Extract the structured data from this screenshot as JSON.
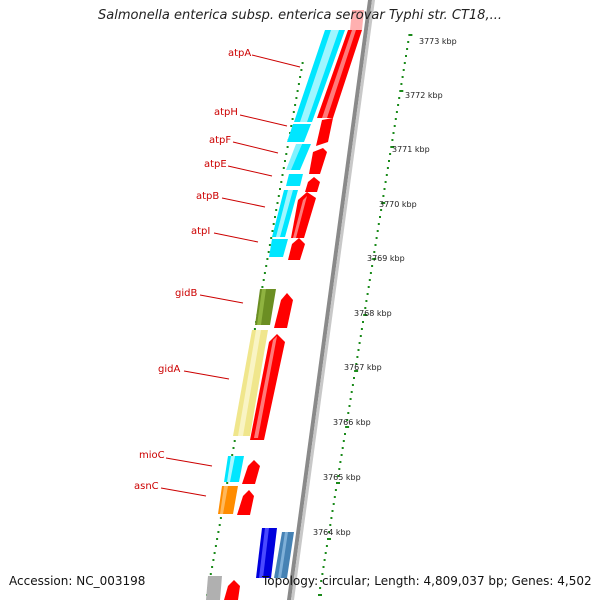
{
  "title": "Salmonella enterica subsp. enterica serovar Typhi str. CT18,...",
  "accession": "Accession: NC_003198",
  "summary": "Topology: circular; Length: 4,809,037 bp; Genes: 4,502",
  "colors": {
    "backbone": "#808080",
    "tick": "#1a8a1a",
    "forward_strand": "#ff0000",
    "label": "#cc0000"
  },
  "genes": [
    {
      "name": "atpA",
      "color": "#00e6ff"
    },
    {
      "name": "atpH",
      "color": "#00e6ff"
    },
    {
      "name": "atpF",
      "color": "#00e6ff"
    },
    {
      "name": "atpE",
      "color": "#00e6ff"
    },
    {
      "name": "atpB",
      "color": "#00e6ff"
    },
    {
      "name": "atpI",
      "color": "#00e6ff"
    },
    {
      "name": "gidB",
      "color": "#6b8e23"
    },
    {
      "name": "gidA",
      "color": "#f0e68c"
    },
    {
      "name": "mioC",
      "color": "#00e6ff"
    },
    {
      "name": "asnC",
      "color": "#ff8c00"
    }
  ],
  "kbp_ticks": [
    "3773 kbp",
    "3772 kbp",
    "3771 kbp",
    "3770 kbp",
    "3769 kbp",
    "3768 kbp",
    "3767 kbp",
    "3766 kbp",
    "3765 kbp",
    "3764 kbp"
  ]
}
